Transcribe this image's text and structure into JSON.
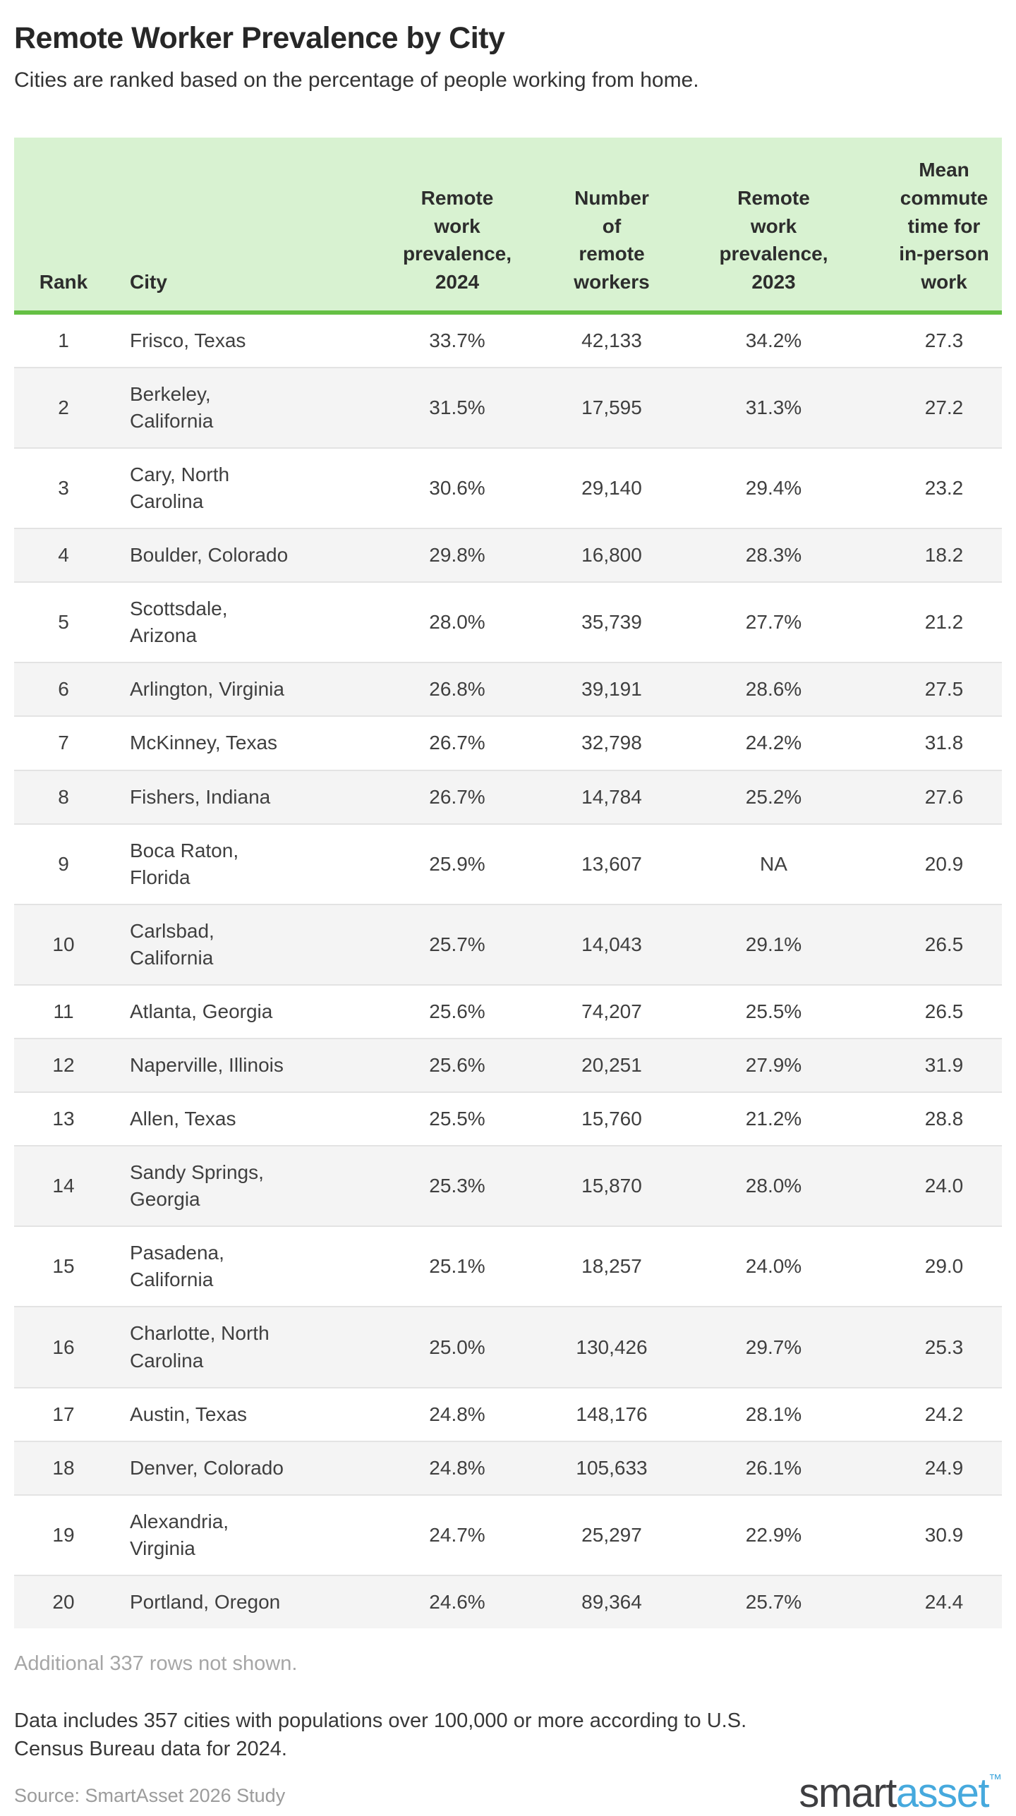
{
  "page": {
    "title": "Remote Worker Prevalence by City",
    "subtitle": "Cities are ranked based on the percentage of people working from home."
  },
  "table": {
    "headers": {
      "rank": "Rank",
      "city": "City",
      "p2024": "Remote\nwork\nprevalence,\n2024",
      "workers": "Number\nof\nremote\nworkers",
      "p2023": "Remote\nwork\nprevalence,\n2023",
      "commute": "Mean\ncommute\ntime for\nin-person\nwork"
    },
    "rows": [
      {
        "rank": "1",
        "city": "Frisco, Texas",
        "p2024": "33.7%",
        "workers": "42,133",
        "p2023": "34.2%",
        "commute": "27.3"
      },
      {
        "rank": "2",
        "city": "Berkeley,\nCalifornia",
        "p2024": "31.5%",
        "workers": "17,595",
        "p2023": "31.3%",
        "commute": "27.2"
      },
      {
        "rank": "3",
        "city": "Cary, North\nCarolina",
        "p2024": "30.6%",
        "workers": "29,140",
        "p2023": "29.4%",
        "commute": "23.2"
      },
      {
        "rank": "4",
        "city": "Boulder, Colorado",
        "p2024": "29.8%",
        "workers": "16,800",
        "p2023": "28.3%",
        "commute": "18.2"
      },
      {
        "rank": "5",
        "city": "Scottsdale,\nArizona",
        "p2024": "28.0%",
        "workers": "35,739",
        "p2023": "27.7%",
        "commute": "21.2"
      },
      {
        "rank": "6",
        "city": "Arlington, Virginia",
        "p2024": "26.8%",
        "workers": "39,191",
        "p2023": "28.6%",
        "commute": "27.5"
      },
      {
        "rank": "7",
        "city": "McKinney, Texas",
        "p2024": "26.7%",
        "workers": "32,798",
        "p2023": "24.2%",
        "commute": "31.8"
      },
      {
        "rank": "8",
        "city": "Fishers, Indiana",
        "p2024": "26.7%",
        "workers": "14,784",
        "p2023": "25.2%",
        "commute": "27.6"
      },
      {
        "rank": "9",
        "city": "Boca Raton,\nFlorida",
        "p2024": "25.9%",
        "workers": "13,607",
        "p2023": "NA",
        "commute": "20.9"
      },
      {
        "rank": "10",
        "city": "Carlsbad,\nCalifornia",
        "p2024": "25.7%",
        "workers": "14,043",
        "p2023": "29.1%",
        "commute": "26.5"
      },
      {
        "rank": "11",
        "city": "Atlanta, Georgia",
        "p2024": "25.6%",
        "workers": "74,207",
        "p2023": "25.5%",
        "commute": "26.5"
      },
      {
        "rank": "12",
        "city": "Naperville, Illinois",
        "p2024": "25.6%",
        "workers": "20,251",
        "p2023": "27.9%",
        "commute": "31.9"
      },
      {
        "rank": "13",
        "city": "Allen, Texas",
        "p2024": "25.5%",
        "workers": "15,760",
        "p2023": "21.2%",
        "commute": "28.8"
      },
      {
        "rank": "14",
        "city": "Sandy Springs,\nGeorgia",
        "p2024": "25.3%",
        "workers": "15,870",
        "p2023": "28.0%",
        "commute": "24.0"
      },
      {
        "rank": "15",
        "city": "Pasadena,\nCalifornia",
        "p2024": "25.1%",
        "workers": "18,257",
        "p2023": "24.0%",
        "commute": "29.0"
      },
      {
        "rank": "16",
        "city": "Charlotte, North\nCarolina",
        "p2024": "25.0%",
        "workers": "130,426",
        "p2023": "29.7%",
        "commute": "25.3"
      },
      {
        "rank": "17",
        "city": "Austin, Texas",
        "p2024": "24.8%",
        "workers": "148,176",
        "p2023": "28.1%",
        "commute": "24.2"
      },
      {
        "rank": "18",
        "city": "Denver, Colorado",
        "p2024": "24.8%",
        "workers": "105,633",
        "p2023": "26.1%",
        "commute": "24.9"
      },
      {
        "rank": "19",
        "city": "Alexandria,\nVirginia",
        "p2024": "24.7%",
        "workers": "25,297",
        "p2023": "22.9%",
        "commute": "30.9"
      },
      {
        "rank": "20",
        "city": "Portland, Oregon",
        "p2024": "24.6%",
        "workers": "89,364",
        "p2023": "25.7%",
        "commute": "24.4"
      }
    ]
  },
  "footer": {
    "rows_note": "Additional 337 rows not shown.",
    "data_note": "Data includes 357 cities with populations over 100,000 or more according to U.S.\nCensus Bureau data for 2024.",
    "source": "Source: SmartAsset 2026 Study",
    "logo": {
      "first": "smart",
      "second": "asset",
      "tm": "™"
    }
  },
  "colors": {
    "header_bg": "#d8f2d1",
    "header_border": "#65c044",
    "stripe": "#f4f4f4",
    "row_line": "#e3e3e3",
    "logo_blue": "#46a9dd"
  },
  "chart_data": {
    "type": "table",
    "title": "Remote Worker Prevalence by City",
    "subtitle": "Cities are ranked based on the percentage of people working from home.",
    "columns": [
      "Rank",
      "City",
      "Remote work prevalence, 2024",
      "Number of remote workers",
      "Remote work prevalence, 2023",
      "Mean commute time for in-person work"
    ],
    "rows": [
      [
        1,
        "Frisco, Texas",
        "33.7%",
        42133,
        "34.2%",
        27.3
      ],
      [
        2,
        "Berkeley, California",
        "31.5%",
        17595,
        "31.3%",
        27.2
      ],
      [
        3,
        "Cary, North Carolina",
        "30.6%",
        29140,
        "29.4%",
        23.2
      ],
      [
        4,
        "Boulder, Colorado",
        "29.8%",
        16800,
        "28.3%",
        18.2
      ],
      [
        5,
        "Scottsdale, Arizona",
        "28.0%",
        35739,
        "27.7%",
        21.2
      ],
      [
        6,
        "Arlington, Virginia",
        "26.8%",
        39191,
        "28.6%",
        27.5
      ],
      [
        7,
        "McKinney, Texas",
        "26.7%",
        32798,
        "24.2%",
        31.8
      ],
      [
        8,
        "Fishers, Indiana",
        "26.7%",
        14784,
        "25.2%",
        27.6
      ],
      [
        9,
        "Boca Raton, Florida",
        "25.9%",
        13607,
        "NA",
        20.9
      ],
      [
        10,
        "Carlsbad, California",
        "25.7%",
        14043,
        "29.1%",
        26.5
      ],
      [
        11,
        "Atlanta, Georgia",
        "25.6%",
        74207,
        "25.5%",
        26.5
      ],
      [
        12,
        "Naperville, Illinois",
        "25.6%",
        20251,
        "27.9%",
        31.9
      ],
      [
        13,
        "Allen, Texas",
        "25.5%",
        15760,
        "21.2%",
        28.8
      ],
      [
        14,
        "Sandy Springs, Georgia",
        "25.3%",
        15870,
        "28.0%",
        24.0
      ],
      [
        15,
        "Pasadena, California",
        "25.1%",
        18257,
        "24.0%",
        29.0
      ],
      [
        16,
        "Charlotte, North Carolina",
        "25.0%",
        130426,
        "29.7%",
        25.3
      ],
      [
        17,
        "Austin, Texas",
        "24.8%",
        148176,
        "28.1%",
        24.2
      ],
      [
        18,
        "Denver, Colorado",
        "24.8%",
        105633,
        "26.1%",
        24.9
      ],
      [
        19,
        "Alexandria, Virginia",
        "24.7%",
        25297,
        "22.9%",
        30.9
      ],
      [
        20,
        "Portland, Oregon",
        "24.6%",
        89364,
        "25.7%",
        24.4
      ]
    ]
  }
}
